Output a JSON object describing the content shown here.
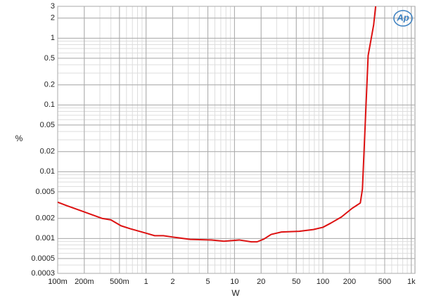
{
  "chart_data": {
    "type": "line",
    "logo": "Ap",
    "xlabel": "W",
    "ylabel": "%",
    "xscale": "log",
    "yscale": "log",
    "grid": true,
    "xlim": [
      0.1,
      1100
    ],
    "ylim": [
      0.0003,
      3
    ],
    "xticks": [
      {
        "value": 0.1,
        "label": "100m"
      },
      {
        "value": 0.2,
        "label": "200m"
      },
      {
        "value": 0.5,
        "label": "500m"
      },
      1,
      2,
      5,
      10,
      20,
      50,
      100,
      200,
      500,
      {
        "value": 1000,
        "label": "1k"
      }
    ],
    "yticks": [
      0.0003,
      0.0005,
      0.001,
      0.002,
      0.005,
      0.01,
      0.02,
      0.05,
      0.1,
      0.2,
      0.5,
      1,
      2,
      3
    ],
    "x": [
      0.1,
      0.127,
      0.2,
      0.317,
      0.4,
      0.52,
      0.66,
      1,
      1.25,
      1.57,
      2,
      3.15,
      5.5,
      7.6,
      11.3,
      15.5,
      18,
      21.5,
      26,
      34,
      54,
      78,
      100,
      123,
      162,
      212,
      265,
      280,
      325,
      375,
      395
    ],
    "series": [
      {
        "color": "#dd1111",
        "values": [
          0.0035,
          0.0031,
          0.0025,
          0.002,
          0.0019,
          0.00155,
          0.0014,
          0.0012,
          0.0011,
          0.0011,
          0.00105,
          0.00097,
          0.00095,
          0.00091,
          0.00095,
          0.00089,
          0.00089,
          0.00098,
          0.00115,
          0.00125,
          0.00128,
          0.00136,
          0.00147,
          0.0017,
          0.0021,
          0.0028,
          0.0034,
          0.0055,
          0.55,
          1.58,
          3.0
        ]
      }
    ]
  }
}
